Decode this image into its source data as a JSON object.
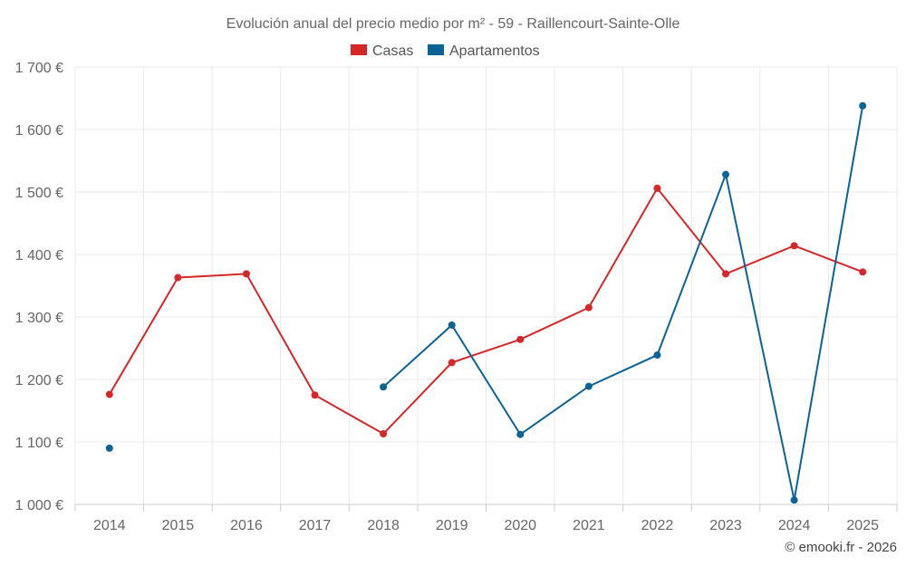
{
  "chart_data": {
    "type": "line",
    "title": "Evolución anual del precio medio por m² - 59 - Raillencourt-Sainte-Olle",
    "categories": [
      "2014",
      "2015",
      "2016",
      "2017",
      "2018",
      "2019",
      "2020",
      "2021",
      "2022",
      "2023",
      "2024",
      "2025"
    ],
    "series": [
      {
        "name": "Casas",
        "color": "#d62728",
        "values": [
          1176,
          1363,
          1369,
          1175,
          1113,
          1227,
          1264,
          1315,
          1506,
          1369,
          1414,
          1372
        ]
      },
      {
        "name": "Apartamentos",
        "color": "#0b6396",
        "values": [
          1090,
          null,
          null,
          null,
          1188,
          1287,
          1112,
          1189,
          1239,
          1528,
          1007,
          1638
        ]
      }
    ],
    "ylim": [
      1000,
      1700
    ],
    "yticks": [
      1000,
      1100,
      1200,
      1300,
      1400,
      1500,
      1600,
      1700
    ],
    "ytick_labels": [
      "1 000 €",
      "1 100 €",
      "1 200 €",
      "1 300 €",
      "1 400 €",
      "1 500 €",
      "1 600 €",
      "1 700 €"
    ],
    "xlabel": "",
    "ylabel": "",
    "grid": true,
    "legend": "top-center"
  },
  "credit": "© emooki.fr - 2026"
}
